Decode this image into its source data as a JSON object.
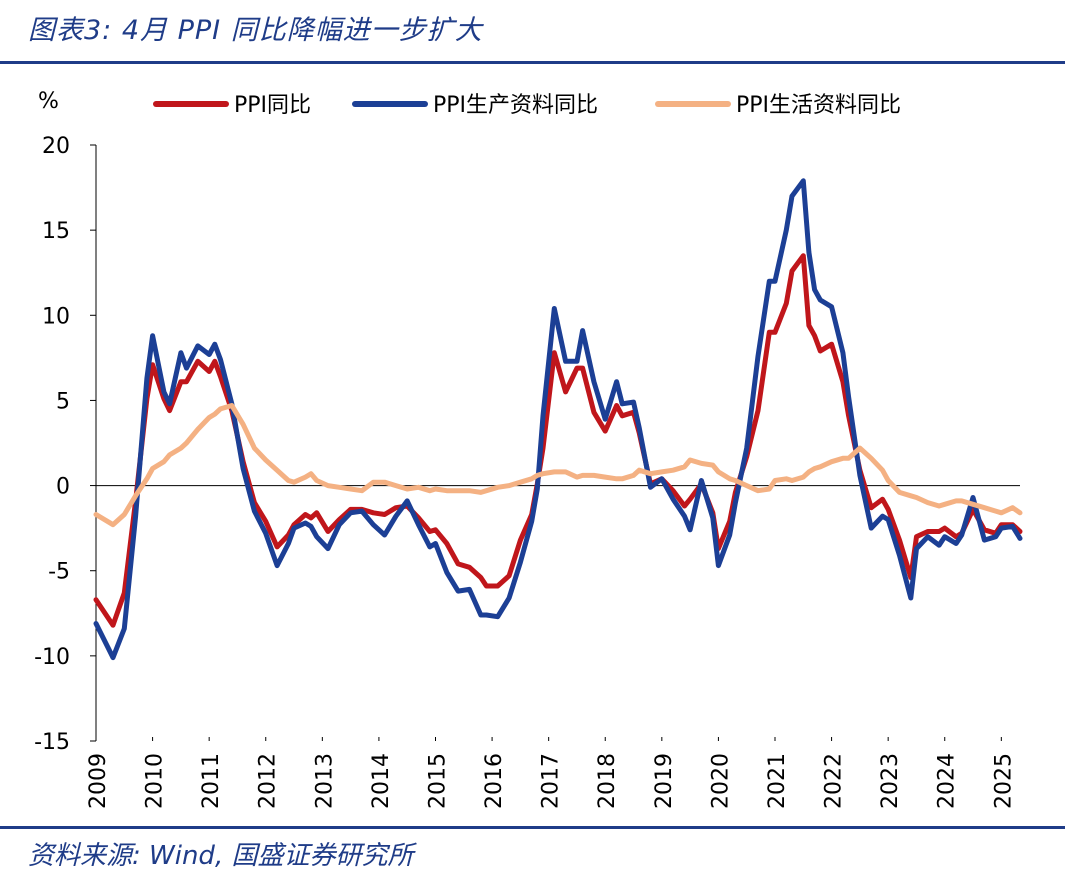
{
  "header": {
    "title": "图表3: 4月 PPI 同比降幅进一步扩大"
  },
  "footer": {
    "source": "资料来源: Wind, 国盛证券研究所"
  },
  "chart_data": {
    "type": "line",
    "title": "图表3: 4月 PPI 同比降幅进一步扩大",
    "xlabel": "",
    "ylabel": "%",
    "ylim": [
      -15,
      20
    ],
    "yticks": [
      20,
      15,
      10,
      5,
      0,
      -5,
      -10,
      -15
    ],
    "xlim": [
      2009.0,
      2025.33
    ],
    "xticks": [
      "2009",
      "2010",
      "2011",
      "2012",
      "2013",
      "2014",
      "2015",
      "2016",
      "2017",
      "2018",
      "2019",
      "2020",
      "2021",
      "2022",
      "2023",
      "2024",
      "2025"
    ],
    "legend_position": "top",
    "series": [
      {
        "name": "PPI同比",
        "color": "#c0161b",
        "x": [
          2009.0,
          2009.3,
          2009.5,
          2009.7,
          2009.9,
          2010.0,
          2010.2,
          2010.3,
          2010.5,
          2010.6,
          2010.8,
          2011.0,
          2011.1,
          2011.2,
          2011.4,
          2011.6,
          2011.8,
          2012.0,
          2012.2,
          2012.4,
          2012.5,
          2012.7,
          2012.8,
          2012.9,
          2013.1,
          2013.3,
          2013.5,
          2013.7,
          2013.9,
          2014.1,
          2014.3,
          2014.5,
          2014.7,
          2014.9,
          2015.0,
          2015.2,
          2015.4,
          2015.6,
          2015.8,
          2015.9,
          2016.1,
          2016.3,
          2016.5,
          2016.7,
          2016.8,
          2016.9,
          2017.1,
          2017.3,
          2017.5,
          2017.6,
          2017.8,
          2018.0,
          2018.2,
          2018.3,
          2018.5,
          2018.6,
          2018.8,
          2019.0,
          2019.2,
          2019.4,
          2019.5,
          2019.7,
          2019.9,
          2020.0,
          2020.2,
          2020.3,
          2020.5,
          2020.7,
          2020.9,
          2021.0,
          2021.2,
          2021.3,
          2021.5,
          2021.6,
          2021.7,
          2021.8,
          2022.0,
          2022.2,
          2022.3,
          2022.5,
          2022.7,
          2022.9,
          2023.0,
          2023.2,
          2023.4,
          2023.5,
          2023.7,
          2023.9,
          2024.0,
          2024.2,
          2024.3,
          2024.5,
          2024.7,
          2024.9,
          2025.0,
          2025.2,
          2025.33
        ],
        "y": [
          -6.7,
          -8.2,
          -6.3,
          -0.9,
          5.1,
          7.1,
          5.1,
          4.4,
          6.1,
          6.1,
          7.3,
          6.7,
          7.3,
          6.4,
          4.4,
          1.4,
          -1.0,
          -2.1,
          -3.6,
          -2.9,
          -2.3,
          -1.7,
          -1.9,
          -1.6,
          -2.7,
          -2.0,
          -1.4,
          -1.4,
          -1.6,
          -1.7,
          -1.3,
          -1.2,
          -1.9,
          -2.7,
          -2.6,
          -3.4,
          -4.6,
          -4.8,
          -5.4,
          -5.9,
          -5.9,
          -5.3,
          -3.2,
          -1.7,
          0.1,
          2.2,
          7.8,
          5.5,
          6.9,
          6.9,
          4.3,
          3.2,
          4.7,
          4.1,
          4.3,
          3.1,
          0.1,
          0.4,
          -0.3,
          -1.2,
          -0.8,
          0.1,
          -1.6,
          -3.7,
          -2.1,
          -0.4,
          1.7,
          4.4,
          9.0,
          9.0,
          10.7,
          12.6,
          13.5,
          9.4,
          8.8,
          7.9,
          8.3,
          6.1,
          4.1,
          0.9,
          -1.3,
          -0.8,
          -1.4,
          -3.2,
          -5.4,
          -3.0,
          -2.7,
          -2.7,
          -2.5,
          -3.0,
          -2.8,
          -1.4,
          -2.6,
          -2.8,
          -2.3,
          -2.3,
          -2.7
        ]
      },
      {
        "name": "PPI生产资料同比",
        "color": "#1c3f95",
        "x": [
          2009.0,
          2009.3,
          2009.5,
          2009.7,
          2009.9,
          2010.0,
          2010.2,
          2010.3,
          2010.5,
          2010.6,
          2010.8,
          2011.0,
          2011.1,
          2011.2,
          2011.4,
          2011.6,
          2011.8,
          2012.0,
          2012.2,
          2012.4,
          2012.5,
          2012.7,
          2012.8,
          2012.9,
          2013.1,
          2013.3,
          2013.5,
          2013.7,
          2013.9,
          2014.1,
          2014.3,
          2014.5,
          2014.7,
          2014.9,
          2015.0,
          2015.2,
          2015.4,
          2015.6,
          2015.8,
          2015.9,
          2016.1,
          2016.3,
          2016.5,
          2016.7,
          2016.8,
          2016.9,
          2017.1,
          2017.3,
          2017.5,
          2017.6,
          2017.8,
          2018.0,
          2018.2,
          2018.3,
          2018.5,
          2018.6,
          2018.8,
          2019.0,
          2019.2,
          2019.4,
          2019.5,
          2019.7,
          2019.9,
          2020.0,
          2020.2,
          2020.3,
          2020.5,
          2020.7,
          2020.9,
          2021.0,
          2021.2,
          2021.3,
          2021.5,
          2021.6,
          2021.7,
          2021.8,
          2022.0,
          2022.2,
          2022.3,
          2022.5,
          2022.7,
          2022.9,
          2023.0,
          2023.2,
          2023.4,
          2023.5,
          2023.7,
          2023.9,
          2024.0,
          2024.2,
          2024.3,
          2024.5,
          2024.7,
          2024.9,
          2025.0,
          2025.2,
          2025.33
        ],
        "y": [
          -8.1,
          -10.1,
          -8.4,
          -1.8,
          6.3,
          8.8,
          5.5,
          4.8,
          7.8,
          6.9,
          8.2,
          7.7,
          8.3,
          7.4,
          4.8,
          1.0,
          -1.5,
          -2.8,
          -4.7,
          -3.4,
          -2.5,
          -2.2,
          -2.4,
          -3.0,
          -3.7,
          -2.3,
          -1.6,
          -1.5,
          -2.3,
          -2.9,
          -1.8,
          -0.9,
          -2.3,
          -3.6,
          -3.4,
          -5.1,
          -6.2,
          -6.1,
          -7.6,
          -7.6,
          -7.7,
          -6.6,
          -4.5,
          -2.1,
          -0.2,
          4.1,
          10.4,
          7.3,
          7.3,
          9.1,
          6.1,
          3.9,
          6.1,
          4.8,
          4.9,
          3.4,
          -0.1,
          0.4,
          -0.8,
          -1.8,
          -2.6,
          0.3,
          -1.9,
          -4.7,
          -2.9,
          -1.0,
          2.2,
          7.6,
          12.0,
          12.0,
          15.0,
          17.0,
          17.9,
          13.7,
          11.5,
          10.9,
          10.5,
          7.8,
          5.2,
          0.6,
          -2.5,
          -1.8,
          -2.0,
          -4.1,
          -6.6,
          -3.7,
          -3.0,
          -3.5,
          -3.0,
          -3.4,
          -2.9,
          -0.7,
          -3.2,
          -3.0,
          -2.5,
          -2.4,
          -3.1
        ]
      },
      {
        "name": "PPI生活资料同比",
        "color": "#f4b183",
        "x": [
          2009.0,
          2009.3,
          2009.5,
          2009.7,
          2009.9,
          2010.0,
          2010.2,
          2010.3,
          2010.5,
          2010.6,
          2010.8,
          2011.0,
          2011.1,
          2011.2,
          2011.4,
          2011.6,
          2011.8,
          2012.0,
          2012.2,
          2012.4,
          2012.5,
          2012.7,
          2012.8,
          2012.9,
          2013.1,
          2013.3,
          2013.5,
          2013.7,
          2013.9,
          2014.1,
          2014.3,
          2014.5,
          2014.7,
          2014.9,
          2015.0,
          2015.2,
          2015.4,
          2015.6,
          2015.8,
          2015.9,
          2016.1,
          2016.3,
          2016.5,
          2016.7,
          2016.8,
          2016.9,
          2017.1,
          2017.3,
          2017.5,
          2017.6,
          2017.8,
          2018.0,
          2018.2,
          2018.3,
          2018.5,
          2018.6,
          2018.8,
          2019.0,
          2019.2,
          2019.4,
          2019.5,
          2019.7,
          2019.9,
          2020.0,
          2020.2,
          2020.3,
          2020.5,
          2020.7,
          2020.9,
          2021.0,
          2021.2,
          2021.3,
          2021.5,
          2021.6,
          2021.7,
          2021.8,
          2022.0,
          2022.2,
          2022.3,
          2022.5,
          2022.7,
          2022.9,
          2023.0,
          2023.2,
          2023.4,
          2023.5,
          2023.7,
          2023.9,
          2024.0,
          2024.2,
          2024.3,
          2024.5,
          2024.7,
          2024.9,
          2025.0,
          2025.2,
          2025.33
        ],
        "y": [
          -1.7,
          -2.3,
          -1.7,
          -0.6,
          0.4,
          1.0,
          1.4,
          1.8,
          2.2,
          2.5,
          3.3,
          4.0,
          4.2,
          4.5,
          4.7,
          3.6,
          2.2,
          1.5,
          0.9,
          0.3,
          0.2,
          0.5,
          0.7,
          0.3,
          0.0,
          -0.1,
          -0.2,
          -0.3,
          0.2,
          0.2,
          0.0,
          -0.2,
          -0.1,
          -0.3,
          -0.2,
          -0.3,
          -0.3,
          -0.3,
          -0.4,
          -0.3,
          -0.1,
          0.0,
          0.2,
          0.4,
          0.6,
          0.7,
          0.8,
          0.8,
          0.5,
          0.6,
          0.6,
          0.5,
          0.4,
          0.4,
          0.6,
          0.9,
          0.7,
          0.8,
          0.9,
          1.1,
          1.5,
          1.3,
          1.2,
          0.8,
          0.4,
          0.3,
          0.0,
          -0.3,
          -0.2,
          0.3,
          0.4,
          0.3,
          0.5,
          0.8,
          1.0,
          1.1,
          1.4,
          1.6,
          1.6,
          2.2,
          1.6,
          0.9,
          0.3,
          -0.4,
          -0.6,
          -0.7,
          -1.0,
          -1.2,
          -1.1,
          -0.9,
          -0.9,
          -1.1,
          -1.3,
          -1.5,
          -1.6,
          -1.3,
          -1.6
        ]
      }
    ]
  }
}
